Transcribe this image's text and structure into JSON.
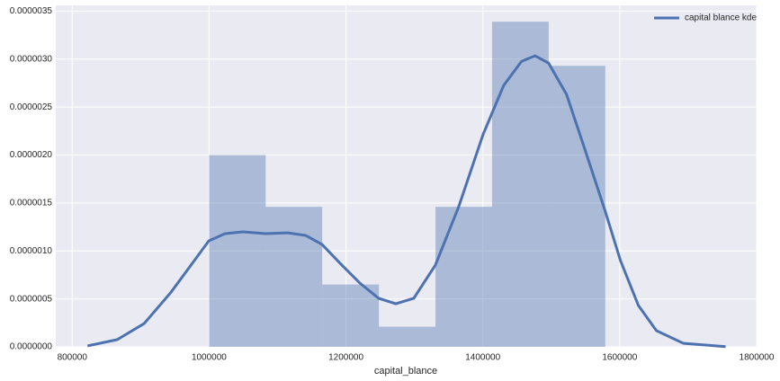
{
  "chart_data": {
    "type": "histogram",
    "xlabel": "capital_blance",
    "bins": [
      1000000,
      1082700,
      1165400,
      1248100,
      1330800,
      1413500,
      1496200,
      1578900
    ],
    "values": [
      2e-06,
      1.46e-06,
      6.5e-07,
      2.1e-07,
      1.46e-06,
      3.39e-06,
      2.93e-06
    ],
    "color": "#4c72b0",
    "kde": {
      "name": "capital blance kde",
      "color": "#4c72b0",
      "x": [
        822300,
        865700,
        905100,
        944500,
        970700,
        999600,
        1023200,
        1049500,
        1082300,
        1115200,
        1141400,
        1165100,
        1194000,
        1220300,
        1247800,
        1272800,
        1299100,
        1330600,
        1364700,
        1400100,
        1430400,
        1456600,
        1476300,
        1496000,
        1522300,
        1548600,
        1578800,
        1601100,
        1627300,
        1653600,
        1693000,
        1754700
      ],
      "values": [
        1e-08,
        7.5e-08,
        2.43e-07,
        5.71e-07,
        8.24e-07,
        1.105e-06,
        1.18e-06,
        1.199e-06,
        1.18e-06,
        1.189e-06,
        1.161e-06,
        1.067e-06,
        8.52e-07,
        6.65e-07,
        5.06e-07,
        4.49e-07,
        5.06e-07,
        8.52e-07,
        1.461e-06,
        2.21e-06,
        2.725e-06,
        2.977e-06,
        3.034e-06,
        2.959e-06,
        2.631e-06,
        2.069e-06,
        1.414e-06,
        8.99e-07,
        4.31e-07,
        1.69e-07,
        3.7e-08,
        2e-09
      ]
    },
    "xlim": [
      776000,
      1800000
    ],
    "xticks": [
      800000,
      1000000,
      1200000,
      1400000,
      1600000,
      1800000
    ],
    "ylim": [
      0,
      3.56e-06
    ],
    "yticks": [
      {
        "value": 0,
        "label": "0.0000000"
      },
      {
        "value": 5e-07,
        "label": "0.0000005"
      },
      {
        "value": 1e-06,
        "label": "0.0000010"
      },
      {
        "value": 1.5e-06,
        "label": "0.0000015"
      },
      {
        "value": 2e-06,
        "label": "0.0000020"
      },
      {
        "value": 2.5e-06,
        "label": "0.0000025"
      },
      {
        "value": 3e-06,
        "label": "0.0000030"
      },
      {
        "value": 3.5e-06,
        "label": "0.0000035"
      }
    ],
    "grid": true,
    "legend": "upper right"
  }
}
